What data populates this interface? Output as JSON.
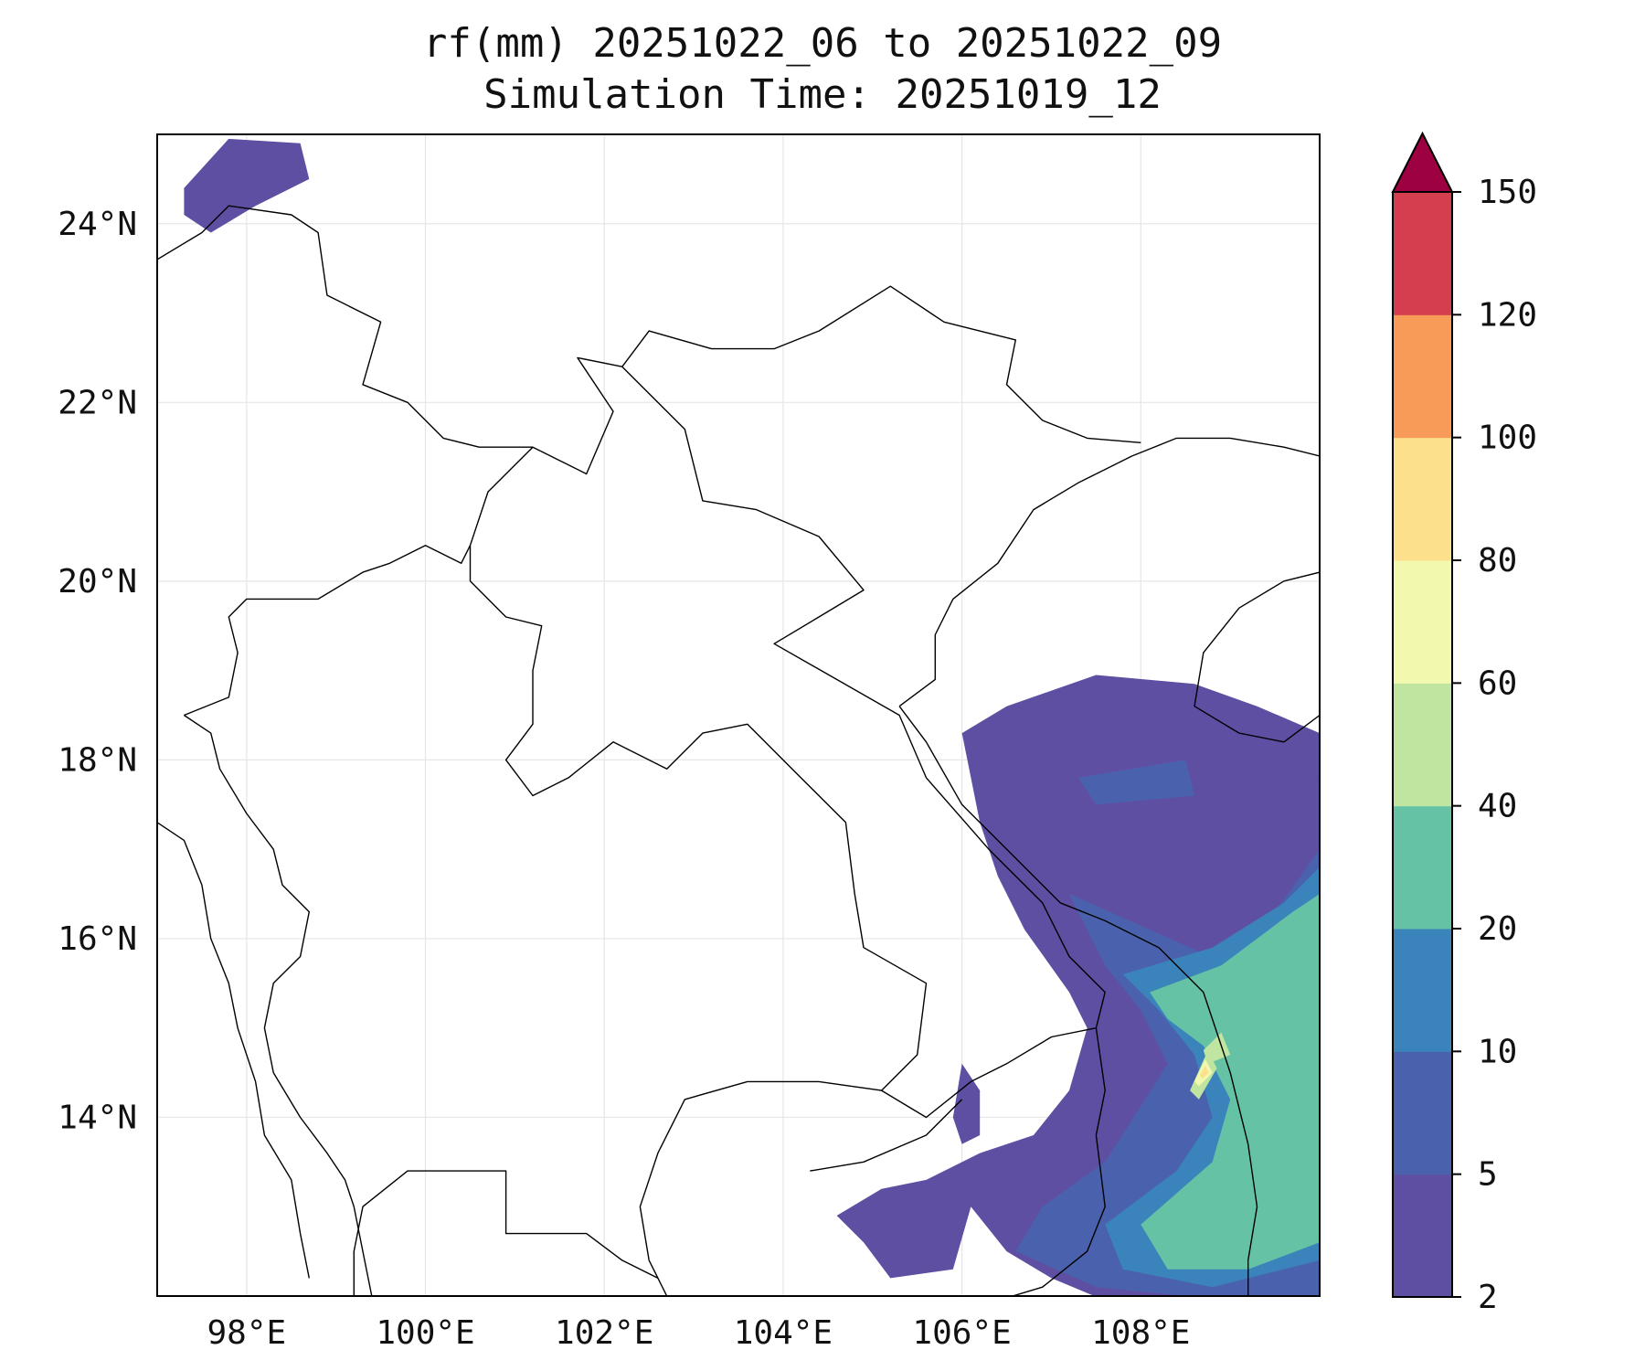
{
  "title": {
    "line1": "rf(mm) 20251022_06 to 20251022_09",
    "line2": "Simulation Time: 20251019_12"
  },
  "map": {
    "lon_range": [
      97.0,
      110.0
    ],
    "lat_range": [
      12.0,
      25.0
    ],
    "lon_ticks": [
      {
        "value": 98,
        "label": "98°E"
      },
      {
        "value": 100,
        "label": "100°E"
      },
      {
        "value": 102,
        "label": "102°E"
      },
      {
        "value": 104,
        "label": "104°E"
      },
      {
        "value": 106,
        "label": "106°E"
      },
      {
        "value": 108,
        "label": "108°E"
      }
    ],
    "lat_ticks": [
      {
        "value": 14,
        "label": "14°N"
      },
      {
        "value": 16,
        "label": "16°N"
      },
      {
        "value": 18,
        "label": "18°N"
      },
      {
        "value": 20,
        "label": "20°N"
      },
      {
        "value": 22,
        "label": "22°N"
      },
      {
        "value": 24,
        "label": "24°N"
      }
    ],
    "gridlines": true
  },
  "colorbar": {
    "levels": [
      "2",
      "5",
      "10",
      "20",
      "40",
      "60",
      "80",
      "100",
      "120",
      "150"
    ],
    "colors": [
      "#5e4fa2",
      "#4a62ad",
      "#3a84bb",
      "#66c2a5",
      "#bfe5a0",
      "#f2f9ae",
      "#fde08b",
      "#f99b58",
      "#d53e4f"
    ],
    "extend_color": "#9e0142",
    "extend": "max"
  },
  "rain_regions": [
    {
      "level": 0,
      "points": [
        [
          106.0,
          18.3
        ],
        [
          106.5,
          18.6
        ],
        [
          107.5,
          18.95
        ],
        [
          108.6,
          18.85
        ],
        [
          109.3,
          18.6
        ],
        [
          110.0,
          18.3
        ],
        [
          110.0,
          11.95
        ],
        [
          109.4,
          11.95
        ],
        [
          108.5,
          11.95
        ],
        [
          107.6,
          11.95
        ],
        [
          107.0,
          12.2
        ],
        [
          106.5,
          12.5
        ],
        [
          106.1,
          13.0
        ],
        [
          105.9,
          12.3
        ],
        [
          105.2,
          12.2
        ],
        [
          104.9,
          12.6
        ],
        [
          104.6,
          12.9
        ],
        [
          105.1,
          13.2
        ],
        [
          105.6,
          13.3
        ],
        [
          106.2,
          13.6
        ],
        [
          106.8,
          13.8
        ],
        [
          107.2,
          14.3
        ],
        [
          107.4,
          15.0
        ],
        [
          107.2,
          15.4
        ],
        [
          106.7,
          16.1
        ],
        [
          106.4,
          16.7
        ],
        [
          106.2,
          17.3
        ],
        [
          106.1,
          17.8
        ]
      ]
    },
    {
      "level": 0,
      "points": [
        [
          97.3,
          24.4
        ],
        [
          97.8,
          24.95
        ],
        [
          98.6,
          24.9
        ],
        [
          98.7,
          24.5
        ],
        [
          98.1,
          24.2
        ],
        [
          97.6,
          23.9
        ],
        [
          97.3,
          24.1
        ]
      ]
    },
    {
      "level": 0,
      "points": [
        [
          105.9,
          14.0
        ],
        [
          106.0,
          14.6
        ],
        [
          106.2,
          14.3
        ],
        [
          106.2,
          13.8
        ],
        [
          106.0,
          13.7
        ]
      ]
    },
    {
      "level": 0,
      "points": [
        [
          108.6,
          17.1
        ],
        [
          109.3,
          17.6
        ],
        [
          110.0,
          17.8
        ],
        [
          110.0,
          17.3
        ],
        [
          109.2,
          17.0
        ]
      ]
    },
    {
      "level": 1,
      "points": [
        [
          107.3,
          17.8
        ],
        [
          108.5,
          18.0
        ],
        [
          108.6,
          17.6
        ],
        [
          107.5,
          17.5
        ]
      ]
    },
    {
      "level": 1,
      "points": [
        [
          107.2,
          16.5
        ],
        [
          108.1,
          16.1
        ],
        [
          109.0,
          15.7
        ],
        [
          109.5,
          16.3
        ],
        [
          110.0,
          17.0
        ],
        [
          110.0,
          12.0
        ],
        [
          108.5,
          12.0
        ],
        [
          107.5,
          12.1
        ],
        [
          106.6,
          12.5
        ],
        [
          106.9,
          13.0
        ],
        [
          107.6,
          13.5
        ],
        [
          108.3,
          14.6
        ],
        [
          108.0,
          15.2
        ],
        [
          107.6,
          15.7
        ]
      ]
    },
    {
      "level": 2,
      "points": [
        [
          107.8,
          15.6
        ],
        [
          108.8,
          15.9
        ],
        [
          109.6,
          16.4
        ],
        [
          110.0,
          16.8
        ],
        [
          110.0,
          12.4
        ],
        [
          108.8,
          12.1
        ],
        [
          107.8,
          12.3
        ],
        [
          107.6,
          12.8
        ],
        [
          108.4,
          13.4
        ],
        [
          108.8,
          14.0
        ],
        [
          108.6,
          14.7
        ],
        [
          108.2,
          15.2
        ]
      ]
    },
    {
      "level": 3,
      "points": [
        [
          108.1,
          15.4
        ],
        [
          108.9,
          15.7
        ],
        [
          109.7,
          16.3
        ],
        [
          110.0,
          16.5
        ],
        [
          110.0,
          12.6
        ],
        [
          109.2,
          12.3
        ],
        [
          108.3,
          12.3
        ],
        [
          108.0,
          12.8
        ],
        [
          108.8,
          13.5
        ],
        [
          109.0,
          14.2
        ],
        [
          108.7,
          14.8
        ],
        [
          108.3,
          15.1
        ]
      ]
    },
    {
      "level": 4,
      "points": [
        [
          108.55,
          14.3
        ],
        [
          108.75,
          14.75
        ],
        [
          108.85,
          14.55
        ],
        [
          108.65,
          14.2
        ]
      ]
    },
    {
      "level": 4,
      "points": [
        [
          108.7,
          14.75
        ],
        [
          108.9,
          14.95
        ],
        [
          109.0,
          14.7
        ],
        [
          108.75,
          14.6
        ]
      ]
    },
    {
      "level": 5,
      "points": [
        [
          108.6,
          14.4
        ],
        [
          108.72,
          14.65
        ],
        [
          108.8,
          14.5
        ],
        [
          108.65,
          14.35
        ]
      ]
    },
    {
      "level": 6,
      "points": [
        [
          108.66,
          14.47
        ],
        [
          108.72,
          14.58
        ],
        [
          108.76,
          14.5
        ],
        [
          108.69,
          14.43
        ]
      ]
    }
  ],
  "boundaries": [
    [
      [
        97.3,
        18.5
      ],
      [
        97.6,
        18.3
      ],
      [
        97.7,
        17.9
      ],
      [
        98.0,
        17.4
      ],
      [
        98.3,
        17.0
      ],
      [
        98.4,
        16.6
      ],
      [
        98.7,
        16.3
      ],
      [
        98.6,
        15.8
      ],
      [
        98.3,
        15.5
      ],
      [
        98.2,
        15.0
      ],
      [
        98.3,
        14.5
      ],
      [
        98.6,
        14.0
      ],
      [
        98.9,
        13.6
      ],
      [
        99.1,
        13.3
      ],
      [
        99.2,
        13.0
      ],
      [
        99.3,
        12.5
      ],
      [
        99.4,
        12.0
      ]
    ],
    [
      [
        97.3,
        18.5
      ],
      [
        97.8,
        18.7
      ],
      [
        97.9,
        19.2
      ],
      [
        97.8,
        19.6
      ],
      [
        98.0,
        19.8
      ],
      [
        98.8,
        19.8
      ],
      [
        99.3,
        20.1
      ],
      [
        99.6,
        20.2
      ],
      [
        100.0,
        20.4
      ],
      [
        100.4,
        20.2
      ],
      [
        100.5,
        20.4
      ]
    ],
    [
      [
        100.5,
        20.4
      ],
      [
        100.7,
        21.0
      ],
      [
        101.2,
        21.5
      ],
      [
        101.8,
        21.2
      ],
      [
        102.1,
        21.9
      ],
      [
        101.7,
        22.5
      ],
      [
        102.2,
        22.4
      ]
    ],
    [
      [
        102.2,
        22.4
      ],
      [
        102.5,
        22.8
      ],
      [
        103.2,
        22.6
      ],
      [
        103.9,
        22.6
      ],
      [
        104.4,
        22.8
      ],
      [
        105.2,
        23.3
      ],
      [
        105.8,
        22.9
      ],
      [
        106.6,
        22.7
      ],
      [
        106.5,
        22.2
      ],
      [
        106.9,
        21.8
      ],
      [
        107.4,
        21.6
      ],
      [
        108.0,
        21.55
      ]
    ],
    [
      [
        97.0,
        23.6
      ],
      [
        97.5,
        23.9
      ],
      [
        97.8,
        24.2
      ],
      [
        98.5,
        24.1
      ],
      [
        98.8,
        23.9
      ],
      [
        98.9,
        23.2
      ],
      [
        99.5,
        22.9
      ],
      [
        99.3,
        22.2
      ],
      [
        99.8,
        22.0
      ],
      [
        100.2,
        21.6
      ],
      [
        100.6,
        21.5
      ],
      [
        101.2,
        21.5
      ]
    ],
    [
      [
        100.5,
        20.4
      ],
      [
        100.5,
        20.0
      ],
      [
        100.9,
        19.6
      ],
      [
        101.3,
        19.5
      ],
      [
        101.2,
        19.0
      ],
      [
        101.2,
        18.4
      ],
      [
        100.9,
        18.0
      ],
      [
        101.2,
        17.6
      ],
      [
        101.6,
        17.8
      ],
      [
        102.1,
        18.2
      ],
      [
        102.7,
        17.9
      ],
      [
        103.1,
        18.3
      ],
      [
        103.6,
        18.4
      ],
      [
        104.1,
        17.9
      ],
      [
        104.7,
        17.3
      ],
      [
        104.8,
        16.5
      ],
      [
        104.9,
        15.9
      ],
      [
        105.6,
        15.5
      ],
      [
        105.5,
        14.7
      ],
      [
        105.1,
        14.3
      ]
    ],
    [
      [
        105.1,
        14.3
      ],
      [
        104.4,
        14.4
      ],
      [
        103.6,
        14.4
      ],
      [
        102.9,
        14.2
      ],
      [
        102.6,
        13.6
      ],
      [
        102.4,
        13.0
      ],
      [
        102.5,
        12.4
      ],
      [
        102.7,
        12.0
      ]
    ],
    [
      [
        105.1,
        14.3
      ],
      [
        105.6,
        14.0
      ],
      [
        106.1,
        14.4
      ],
      [
        106.5,
        14.6
      ],
      [
        107.0,
        14.9
      ],
      [
        107.5,
        15.0
      ],
      [
        107.6,
        15.4
      ],
      [
        107.2,
        15.8
      ],
      [
        106.9,
        16.4
      ],
      [
        106.3,
        17.0
      ],
      [
        105.6,
        17.8
      ],
      [
        105.3,
        18.5
      ],
      [
        104.6,
        18.9
      ],
      [
        103.9,
        19.3
      ],
      [
        104.4,
        19.6
      ],
      [
        104.9,
        19.9
      ],
      [
        104.4,
        20.5
      ],
      [
        103.7,
        20.8
      ],
      [
        103.1,
        20.9
      ],
      [
        102.9,
        21.7
      ],
      [
        102.2,
        22.4
      ]
    ],
    [
      [
        107.5,
        15.0
      ],
      [
        107.6,
        14.3
      ],
      [
        107.5,
        13.8
      ],
      [
        107.6,
        13.0
      ],
      [
        107.4,
        12.5
      ],
      [
        106.9,
        12.1
      ],
      [
        106.4,
        11.95
      ]
    ],
    [
      [
        104.3,
        13.4
      ],
      [
        104.9,
        13.5
      ],
      [
        105.6,
        13.8
      ],
      [
        106.0,
        14.2
      ]
    ],
    [
      [
        105.3,
        18.6
      ],
      [
        105.6,
        18.2
      ],
      [
        106.0,
        17.5
      ],
      [
        106.6,
        16.9
      ],
      [
        107.1,
        16.4
      ],
      [
        107.6,
        16.2
      ],
      [
        108.2,
        15.9
      ],
      [
        108.7,
        15.4
      ],
      [
        109.0,
        14.5
      ],
      [
        109.2,
        13.7
      ],
      [
        109.3,
        13.0
      ],
      [
        109.2,
        12.4
      ],
      [
        109.2,
        12.0
      ]
    ],
    [
      [
        105.3,
        18.6
      ],
      [
        105.7,
        18.9
      ],
      [
        105.7,
        19.4
      ],
      [
        105.9,
        19.8
      ],
      [
        106.4,
        20.2
      ],
      [
        106.8,
        20.8
      ],
      [
        107.3,
        21.1
      ],
      [
        107.9,
        21.4
      ],
      [
        108.4,
        21.6
      ],
      [
        109.0,
        21.6
      ],
      [
        109.6,
        21.5
      ],
      [
        110.0,
        21.4
      ]
    ],
    [
      [
        110.0,
        20.1
      ],
      [
        109.6,
        20.0
      ],
      [
        109.1,
        19.7
      ],
      [
        108.7,
        19.2
      ],
      [
        108.6,
        18.6
      ],
      [
        109.1,
        18.3
      ],
      [
        109.6,
        18.2
      ],
      [
        110.0,
        18.5
      ]
    ],
    [
      [
        97.0,
        17.3
      ],
      [
        97.3,
        17.1
      ],
      [
        97.5,
        16.6
      ],
      [
        97.6,
        16.0
      ],
      [
        97.8,
        15.5
      ],
      [
        97.9,
        15.0
      ],
      [
        98.1,
        14.4
      ],
      [
        98.2,
        13.8
      ],
      [
        98.5,
        13.3
      ],
      [
        98.6,
        12.7
      ],
      [
        98.7,
        12.2
      ]
    ],
    [
      [
        99.2,
        12.0
      ],
      [
        99.2,
        12.5
      ],
      [
        99.3,
        13.0
      ],
      [
        99.8,
        13.4
      ],
      [
        100.2,
        13.4
      ],
      [
        100.9,
        13.4
      ],
      [
        100.9,
        12.7
      ],
      [
        101.2,
        12.7
      ],
      [
        101.8,
        12.7
      ],
      [
        102.2,
        12.4
      ],
      [
        102.6,
        12.2
      ]
    ]
  ]
}
